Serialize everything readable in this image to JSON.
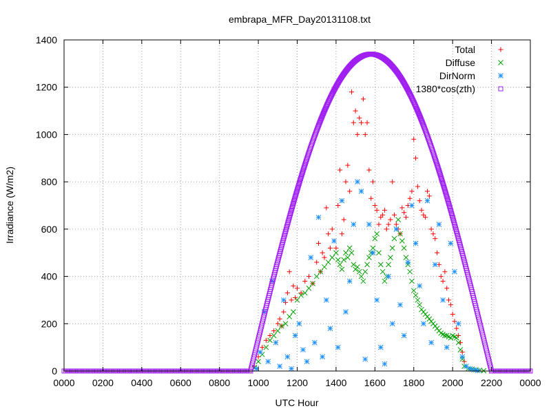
{
  "chart_data": {
    "type": "scatter",
    "title": "embrapa_MFR_Day20131108.txt",
    "xlabel": "UTC Hour",
    "ylabel": "Irradiance (W/m2)",
    "xlim": [
      0,
      2400
    ],
    "ylim": [
      0,
      1400
    ],
    "grid": true,
    "legend_position": "top-right",
    "x_ticks": [
      "0000",
      "0200",
      "0400",
      "0600",
      "0800",
      "1000",
      "1200",
      "1400",
      "1600",
      "1800",
      "2000",
      "2200",
      "0000"
    ],
    "y_ticks": [
      "0",
      "200",
      "400",
      "600",
      "800",
      "1000",
      "1200",
      "1400"
    ],
    "series": [
      {
        "name": "Total",
        "marker": "plus",
        "color": "#ff0000",
        "points": [
          [
            980,
            20
          ],
          [
            1000,
            60
          ],
          [
            1020,
            100
          ],
          [
            1040,
            130
          ],
          [
            1060,
            150
          ],
          [
            1080,
            170
          ],
          [
            1100,
            200
          ],
          [
            1110,
            220
          ],
          [
            1120,
            190
          ],
          [
            1130,
            250
          ],
          [
            1140,
            290
          ],
          [
            1150,
            330
          ],
          [
            1160,
            420
          ],
          [
            1170,
            300
          ],
          [
            1180,
            360
          ],
          [
            1190,
            310
          ],
          [
            1200,
            350
          ],
          [
            1220,
            330
          ],
          [
            1240,
            380
          ],
          [
            1260,
            400
          ],
          [
            1280,
            370
          ],
          [
            1300,
            460
          ],
          [
            1310,
            540
          ],
          [
            1320,
            420
          ],
          [
            1330,
            500
          ],
          [
            1340,
            480
          ],
          [
            1350,
            690
          ],
          [
            1360,
            580
          ],
          [
            1370,
            520
          ],
          [
            1380,
            600
          ],
          [
            1390,
            550
          ],
          [
            1400,
            520
          ],
          [
            1410,
            700
          ],
          [
            1420,
            850
          ],
          [
            1430,
            580
          ],
          [
            1440,
            640
          ],
          [
            1450,
            800
          ],
          [
            1460,
            870
          ],
          [
            1470,
            760
          ],
          [
            1480,
            1180
          ],
          [
            1490,
            1050
          ],
          [
            1500,
            1100
          ],
          [
            1510,
            1000
          ],
          [
            1520,
            1070
          ],
          [
            1530,
            1050
          ],
          [
            1540,
            1150
          ],
          [
            1550,
            1000
          ],
          [
            1560,
            1050
          ],
          [
            1570,
            850
          ],
          [
            1580,
            730
          ],
          [
            1590,
            800
          ],
          [
            1600,
            700
          ],
          [
            1610,
            680
          ],
          [
            1620,
            620
          ],
          [
            1630,
            650
          ],
          [
            1640,
            660
          ],
          [
            1650,
            680
          ],
          [
            1660,
            600
          ],
          [
            1670,
            620
          ],
          [
            1680,
            640
          ],
          [
            1690,
            800
          ],
          [
            1700,
            660
          ],
          [
            1710,
            620
          ],
          [
            1720,
            600
          ],
          [
            1730,
            580
          ],
          [
            1740,
            690
          ],
          [
            1750,
            670
          ],
          [
            1760,
            650
          ],
          [
            1770,
            700
          ],
          [
            1780,
            730
          ],
          [
            1790,
            760
          ],
          [
            1800,
            980
          ],
          [
            1810,
            900
          ],
          [
            1820,
            780
          ],
          [
            1830,
            720
          ],
          [
            1840,
            680
          ],
          [
            1850,
            660
          ],
          [
            1860,
            650
          ],
          [
            1870,
            760
          ],
          [
            1880,
            740
          ],
          [
            1890,
            600
          ],
          [
            1900,
            580
          ],
          [
            1910,
            560
          ],
          [
            1920,
            500
          ],
          [
            1930,
            450
          ],
          [
            1940,
            400
          ],
          [
            1950,
            380
          ],
          [
            1960,
            420
          ],
          [
            1970,
            350
          ],
          [
            1980,
            300
          ],
          [
            1990,
            280
          ],
          [
            2000,
            240
          ],
          [
            2010,
            210
          ],
          [
            2020,
            180
          ],
          [
            2030,
            150
          ],
          [
            2040,
            120
          ],
          [
            2050,
            80
          ],
          [
            2060,
            40
          ]
        ]
      },
      {
        "name": "Diffuse",
        "marker": "cross",
        "color": "#00a000",
        "points": [
          [
            980,
            15
          ],
          [
            1000,
            40
          ],
          [
            1020,
            70
          ],
          [
            1040,
            100
          ],
          [
            1060,
            130
          ],
          [
            1080,
            150
          ],
          [
            1100,
            170
          ],
          [
            1120,
            190
          ],
          [
            1140,
            200
          ],
          [
            1160,
            230
          ],
          [
            1180,
            250
          ],
          [
            1200,
            300
          ],
          [
            1220,
            320
          ],
          [
            1240,
            330
          ],
          [
            1260,
            350
          ],
          [
            1280,
            370
          ],
          [
            1300,
            400
          ],
          [
            1320,
            420
          ],
          [
            1340,
            440
          ],
          [
            1360,
            460
          ],
          [
            1380,
            480
          ],
          [
            1400,
            500
          ],
          [
            1410,
            470
          ],
          [
            1420,
            450
          ],
          [
            1430,
            430
          ],
          [
            1440,
            470
          ],
          [
            1450,
            500
          ],
          [
            1460,
            480
          ],
          [
            1470,
            520
          ],
          [
            1480,
            500
          ],
          [
            1490,
            450
          ],
          [
            1500,
            430
          ],
          [
            1510,
            440
          ],
          [
            1520,
            420
          ],
          [
            1530,
            400
          ],
          [
            1540,
            380
          ],
          [
            1550,
            420
          ],
          [
            1560,
            450
          ],
          [
            1570,
            480
          ],
          [
            1580,
            500
          ],
          [
            1590,
            520
          ],
          [
            1600,
            560
          ],
          [
            1610,
            580
          ],
          [
            1620,
            500
          ],
          [
            1630,
            450
          ],
          [
            1640,
            420
          ],
          [
            1650,
            380
          ],
          [
            1660,
            400
          ],
          [
            1670,
            450
          ],
          [
            1680,
            480
          ],
          [
            1690,
            520
          ],
          [
            1700,
            560
          ],
          [
            1710,
            600
          ],
          [
            1720,
            640
          ],
          [
            1730,
            580
          ],
          [
            1740,
            550
          ],
          [
            1750,
            520
          ],
          [
            1760,
            480
          ],
          [
            1770,
            450
          ],
          [
            1780,
            420
          ],
          [
            1790,
            380
          ],
          [
            1800,
            340
          ],
          [
            1810,
            320
          ],
          [
            1820,
            300
          ],
          [
            1830,
            280
          ],
          [
            1840,
            260
          ],
          [
            1850,
            250
          ],
          [
            1860,
            240
          ],
          [
            1870,
            230
          ],
          [
            1880,
            220
          ],
          [
            1890,
            210
          ],
          [
            1900,
            200
          ],
          [
            1910,
            190
          ],
          [
            1920,
            180
          ],
          [
            1930,
            170
          ],
          [
            1940,
            160
          ],
          [
            1950,
            155
          ],
          [
            1960,
            150
          ],
          [
            1970,
            150
          ],
          [
            1980,
            145
          ],
          [
            1990,
            140
          ],
          [
            2000,
            150
          ],
          [
            2010,
            145
          ],
          [
            2020,
            140
          ],
          [
            2030,
            120
          ],
          [
            2040,
            90
          ],
          [
            2050,
            50
          ],
          [
            2060,
            20
          ],
          [
            2080,
            10
          ],
          [
            2100,
            8
          ],
          [
            2120,
            5
          ],
          [
            2140,
            3
          ],
          [
            2160,
            1
          ]
        ]
      },
      {
        "name": "DirNorm",
        "marker": "star",
        "color": "#1e90ff",
        "points": [
          [
            990,
            10
          ],
          [
            1010,
            80
          ],
          [
            1030,
            250
          ],
          [
            1050,
            40
          ],
          [
            1070,
            380
          ],
          [
            1090,
            120
          ],
          [
            1110,
            20
          ],
          [
            1130,
            300
          ],
          [
            1150,
            60
          ],
          [
            1170,
            10
          ],
          [
            1190,
            150
          ],
          [
            1210,
            200
          ],
          [
            1230,
            90
          ],
          [
            1250,
            40
          ],
          [
            1270,
            480
          ],
          [
            1290,
            120
          ],
          [
            1310,
            650
          ],
          [
            1330,
            60
          ],
          [
            1350,
            300
          ],
          [
            1370,
            180
          ],
          [
            1390,
            550
          ],
          [
            1410,
            100
          ],
          [
            1430,
            720
          ],
          [
            1450,
            250
          ],
          [
            1470,
            380
          ],
          [
            1490,
            620
          ],
          [
            1510,
            800
          ],
          [
            1530,
            760
          ],
          [
            1550,
            50
          ],
          [
            1570,
            620
          ],
          [
            1590,
            500
          ],
          [
            1610,
            300
          ],
          [
            1630,
            100
          ],
          [
            1650,
            30
          ],
          [
            1670,
            400
          ],
          [
            1690,
            200
          ],
          [
            1710,
            600
          ],
          [
            1730,
            280
          ],
          [
            1750,
            150
          ],
          [
            1770,
            460
          ],
          [
            1790,
            700
          ],
          [
            1810,
            540
          ],
          [
            1830,
            360
          ],
          [
            1850,
            200
          ],
          [
            1870,
            720
          ],
          [
            1890,
            120
          ],
          [
            1910,
            450
          ],
          [
            1930,
            620
          ],
          [
            1950,
            300
          ],
          [
            1970,
            100
          ],
          [
            1990,
            540
          ],
          [
            2010,
            420
          ],
          [
            2030,
            200
          ],
          [
            2050,
            60
          ],
          [
            2070,
            20
          ],
          [
            2090,
            10
          ],
          [
            2110,
            5
          ],
          [
            2130,
            2
          ]
        ]
      },
      {
        "name": "1380*cos(zth)",
        "marker": "square",
        "color": "#a020f0",
        "curve": {
          "start": 960,
          "end": 2200,
          "peak_x": 1580,
          "peak_y": 1340
        }
      }
    ]
  }
}
